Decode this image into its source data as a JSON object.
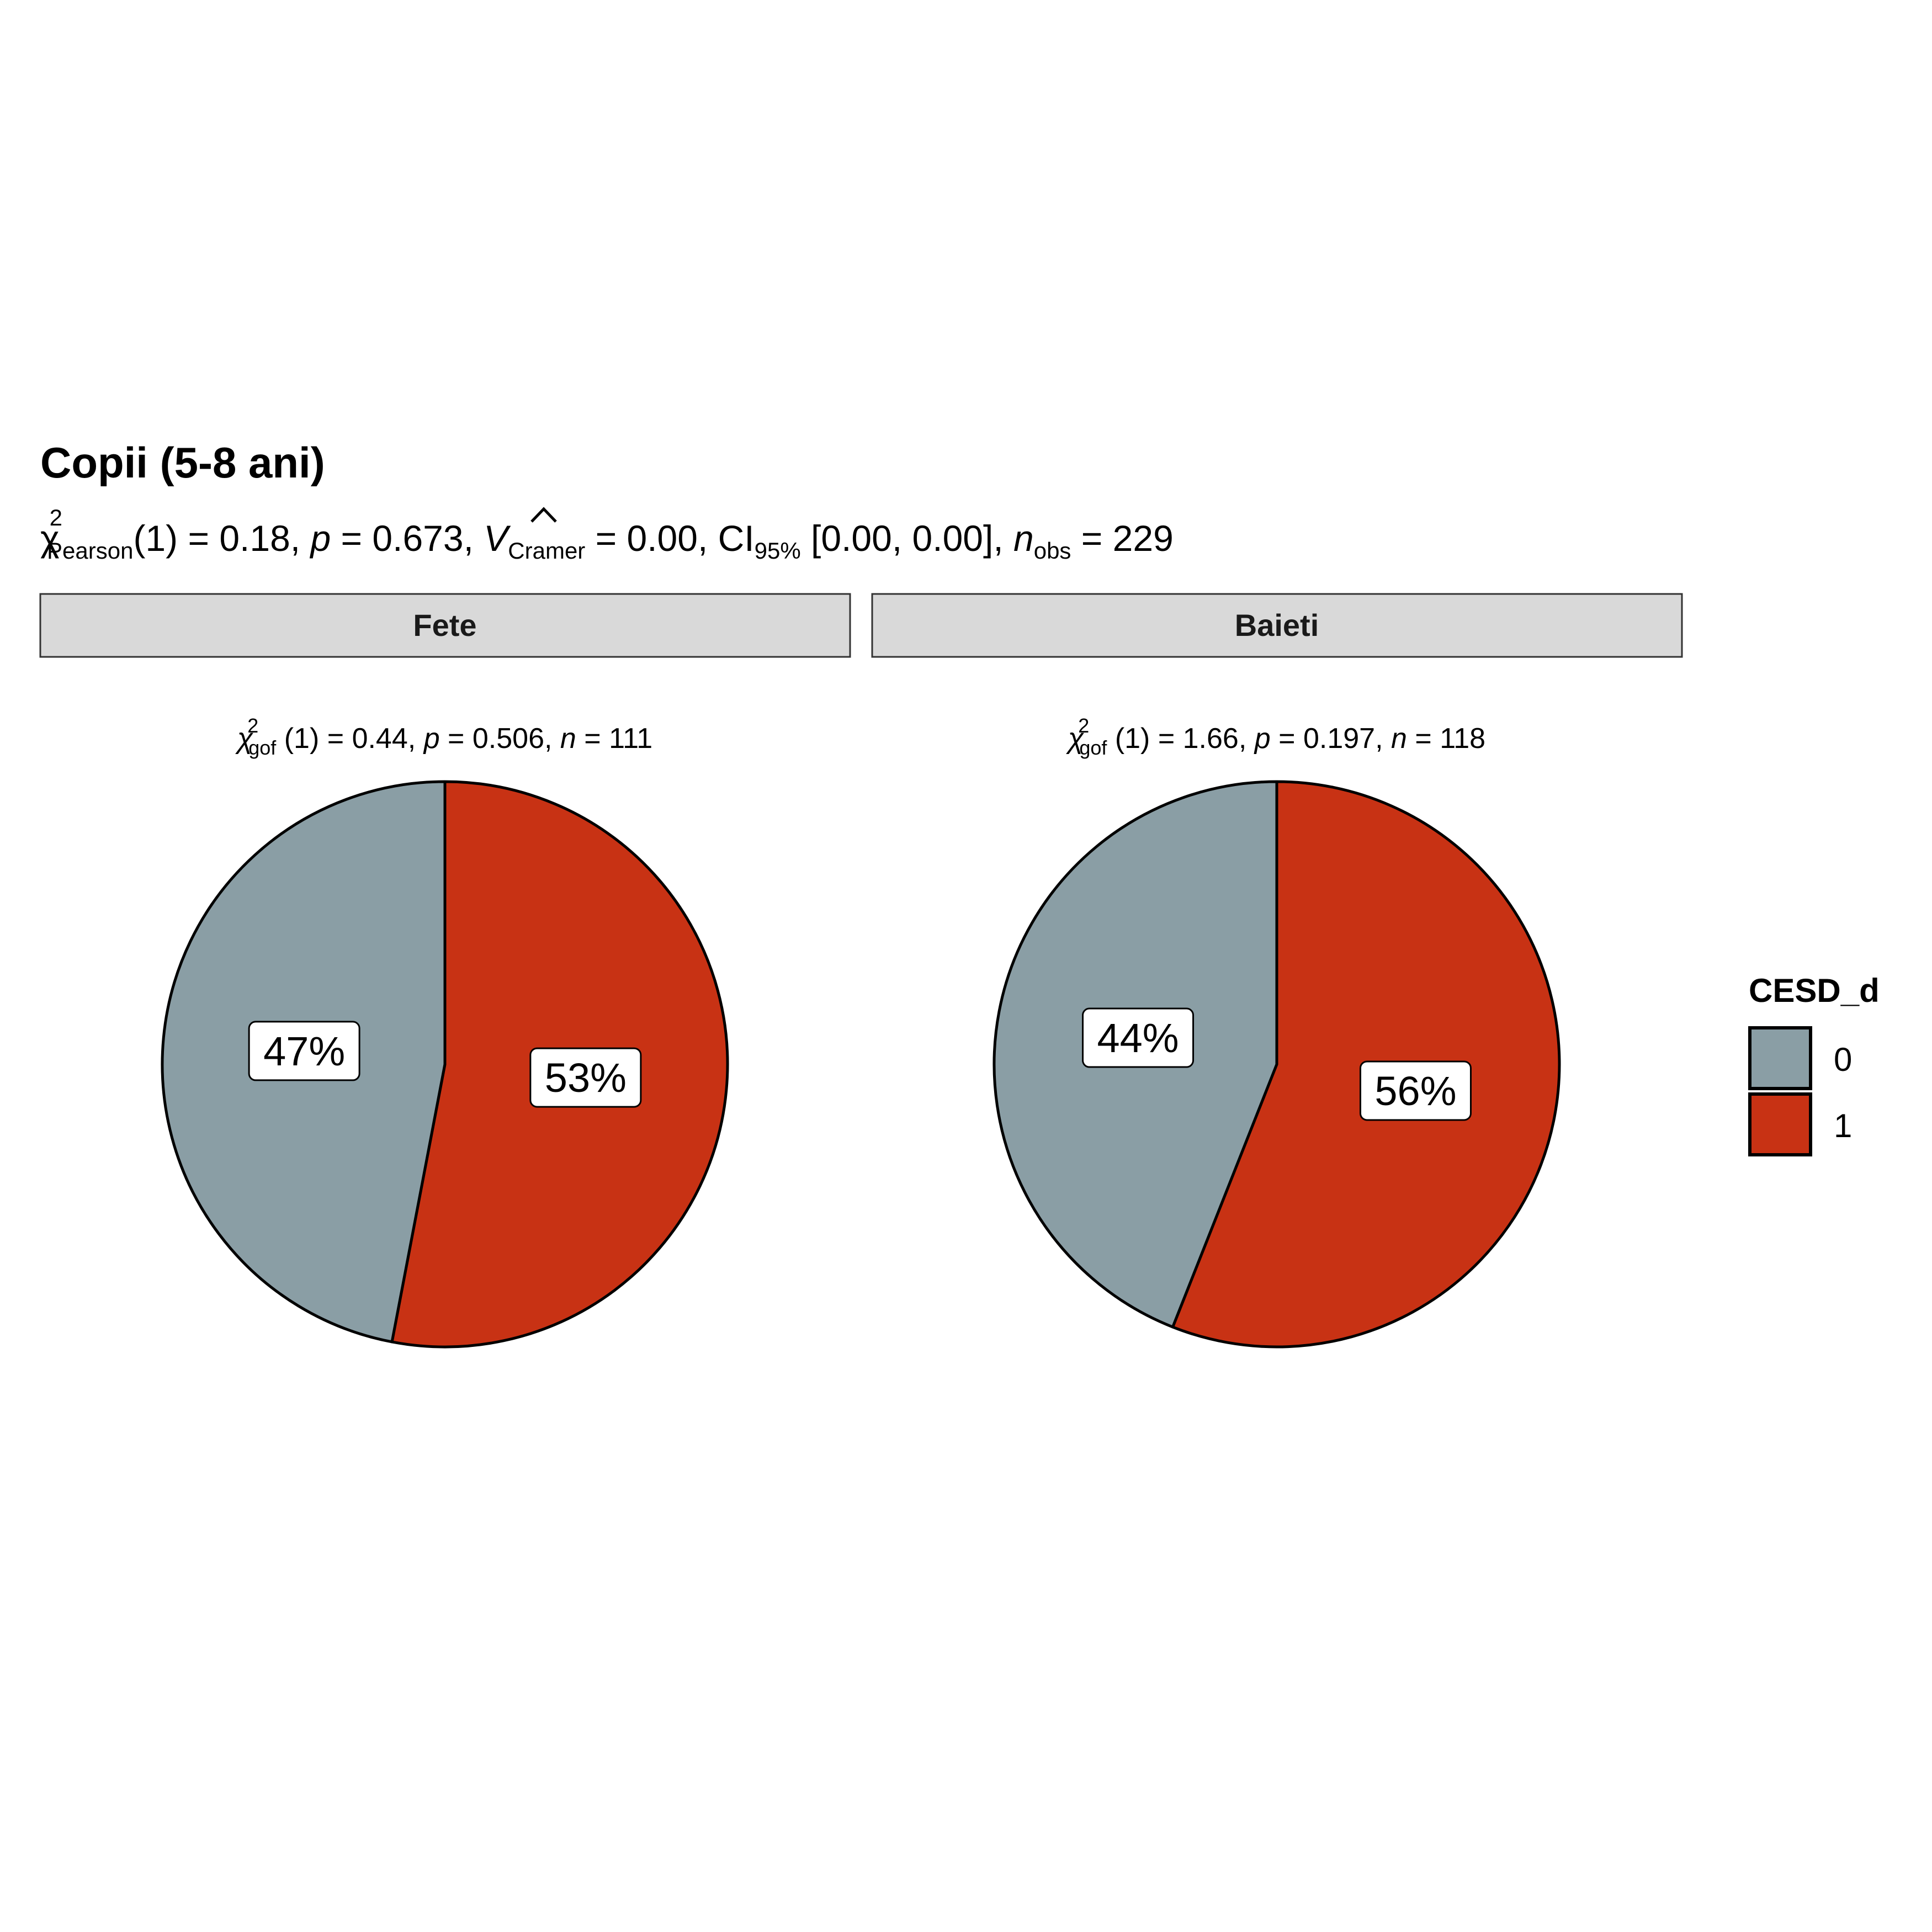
{
  "colors": {
    "level_0": "#8a9ea5",
    "level_1": "#c83214",
    "strip_bg": "#d9d9d9"
  },
  "title": "Copii (5-8 ani)",
  "subtitle": {
    "chi": "χ",
    "chi_sup": "2",
    "chi_sub": "Pearson",
    "df": "(1) = 0.18, ",
    "p": "p",
    "p_val": " = 0.673, ",
    "v": "V",
    "v_sub": "Cramer",
    "v_val": " = 0.00, CI",
    "ci_sub": "95%",
    "ci_val": " [0.00, 0.00], ",
    "n": "n",
    "n_sub": "obs",
    "n_val": " = 229"
  },
  "legend": {
    "title": "CESD_d",
    "items": [
      {
        "label": "0",
        "color": "#8a9ea5"
      },
      {
        "label": "1",
        "color": "#c83214"
      }
    ]
  },
  "chart_data": [
    {
      "type": "pie",
      "facet": "Fete",
      "annotation": {
        "stat": "0.44",
        "p": "0.506",
        "n": "111"
      },
      "slices": [
        {
          "label": "0",
          "percent": 47,
          "text": "47%"
        },
        {
          "label": "1",
          "percent": 53,
          "text": "53%"
        }
      ]
    },
    {
      "type": "pie",
      "facet": "Baieti",
      "annotation": {
        "stat": "1.66",
        "p": "0.197",
        "n": "118"
      },
      "slices": [
        {
          "label": "0",
          "percent": 44,
          "text": "44%"
        },
        {
          "label": "1",
          "percent": 56,
          "text": "56%"
        }
      ]
    }
  ]
}
